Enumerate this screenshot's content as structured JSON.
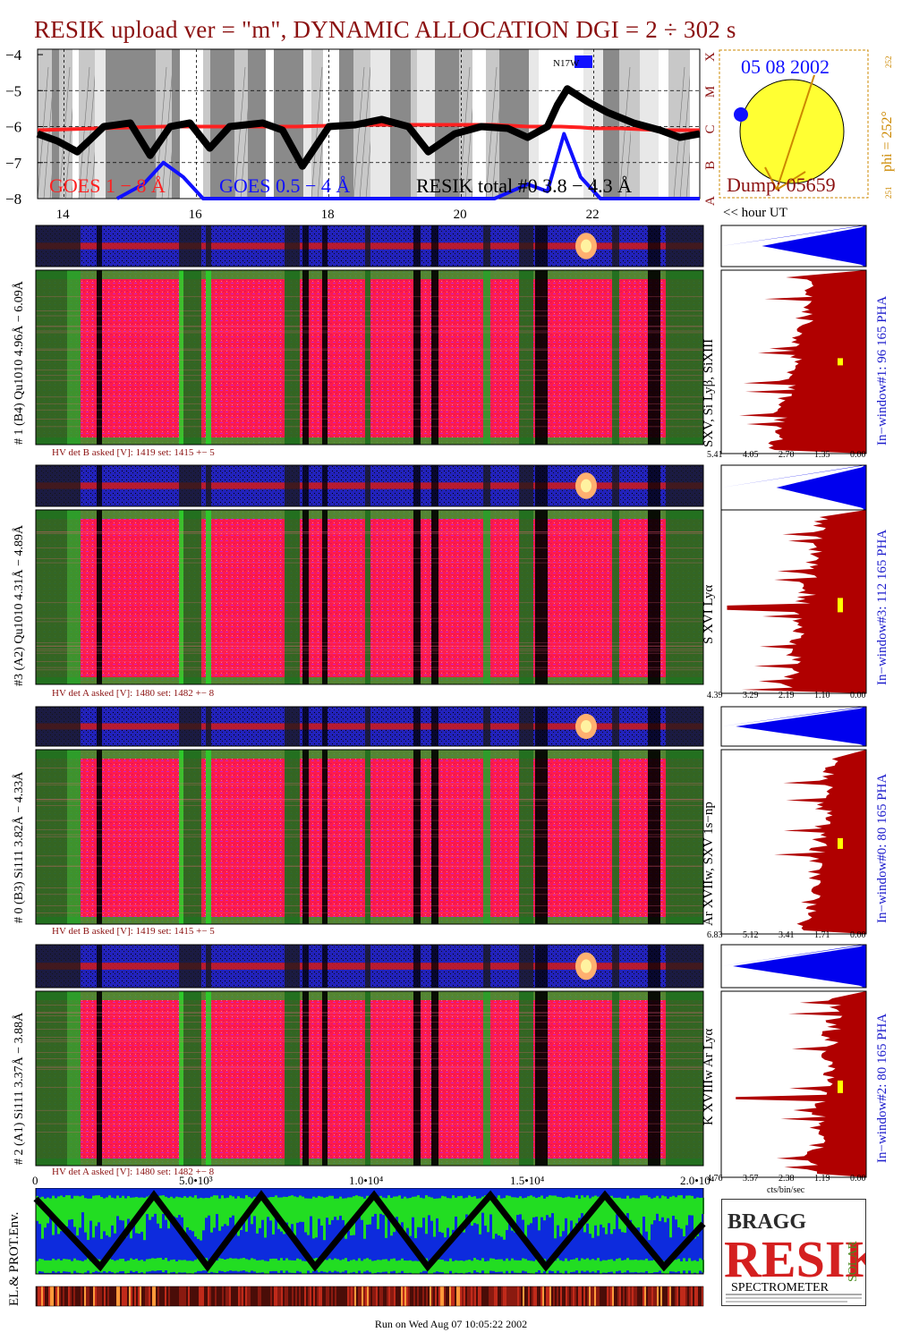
{
  "title": "RESIK upload ver = \"m\", DYNAMIC ALLOCATION  DGI =   2 ÷ 302 s",
  "footer": "Run on Wed Aug 07 10:05:22 2002",
  "hour_label": "<< hour UT",
  "colors": {
    "goes_long": "#ff2020",
    "goes_short": "#1010ff",
    "resik": "#000000",
    "pha": "#0000ee",
    "spectrum": "#b00000",
    "title": "#8b1010",
    "label_blue": "#1a1acc",
    "label_orange": "#cc8800"
  },
  "goes_panel": {
    "yticks": [
      "−4",
      "−5",
      "−6",
      "−7",
      "−8"
    ],
    "classes": [
      "X",
      "M",
      "C",
      "B",
      "A"
    ],
    "legend_long": "GOES 1 − 8 Å",
    "legend_short": "GOES 0.5 − 4 Å",
    "legend_resik": "RESIK total #0  3.8 − 4.3 Å",
    "marker": "N17W"
  },
  "sun": {
    "date": "05 08 2002",
    "phi": "phi = 252°",
    "phi_top": "252",
    "phi_bottom": "251",
    "dump": "Dump: 05659"
  },
  "chart_data": {
    "type": "line",
    "title": "RESIK upload ver = \"m\", DYNAMIC ALLOCATION  DGI =   2 ÷ 302 s",
    "xlabel": "<< hour UT",
    "ylabel": "",
    "x_ticks": [
      "14",
      "16",
      "18",
      "20",
      "22"
    ],
    "xlim": [
      13.6,
      23.6
    ],
    "ylim": [
      -8,
      -3.85
    ],
    "series": [
      {
        "name": "GOES 1 − 8 Å",
        "x": [
          13.6,
          14.5,
          15.5,
          16.5,
          17.5,
          18.5,
          19.5,
          20.5,
          21.0,
          21.5,
          21.8,
          22.0,
          22.4,
          23.0,
          23.6
        ],
        "values": [
          -6.1,
          -6.05,
          -6.0,
          -6.0,
          -6.0,
          -5.95,
          -5.95,
          -5.95,
          -6.0,
          -6.0,
          -6.02,
          -6.05,
          -6.05,
          -6.1,
          -6.1
        ]
      },
      {
        "name": "GOES 0.5 − 4 Å",
        "x": [
          14.8,
          15.2,
          15.5,
          15.8,
          16.1,
          16.5,
          17.0,
          19.5,
          20.5,
          21.0,
          21.3,
          21.55,
          21.8,
          22.1,
          22.6,
          23.0,
          23.6
        ],
        "values": [
          -8,
          -7.6,
          -7.0,
          -7.4,
          -8,
          -8,
          -8,
          -8,
          -8,
          -7.6,
          -7.8,
          -6.2,
          -7.4,
          -8,
          -8,
          -8,
          -8
        ]
      },
      {
        "name": "RESIK total #0  3.8 − 4.3 Å",
        "x": [
          13.6,
          13.9,
          14.2,
          14.6,
          15.0,
          15.3,
          15.6,
          15.9,
          16.2,
          16.5,
          17.0,
          17.3,
          17.6,
          18.0,
          18.4,
          18.8,
          19.2,
          19.5,
          19.9,
          20.3,
          20.7,
          21.0,
          21.3,
          21.45,
          21.6,
          21.9,
          22.2,
          22.6,
          23.0,
          23.3,
          23.6
        ],
        "values": [
          -6.2,
          -6.4,
          -6.7,
          -6.0,
          -5.9,
          -6.8,
          -6.0,
          -5.9,
          -6.6,
          -6.0,
          -5.9,
          -6.1,
          -7.1,
          -6.0,
          -5.95,
          -5.8,
          -6.0,
          -6.7,
          -6.2,
          -6.0,
          -6.05,
          -6.3,
          -6.0,
          -5.4,
          -4.95,
          -5.3,
          -5.6,
          -5.9,
          -6.1,
          -6.3,
          -6.2
        ]
      }
    ],
    "grid": true,
    "legend": "bottom"
  },
  "detectors": [
    {
      "id": "d1",
      "label": "# 1 (B4) Qu1010 4.96Å − 6.09Å",
      "hv": "HV det B asked [V]:  1419 set:  1415 +−    5",
      "line_label": "SXV, Si Lyβ, SiXIII",
      "window": "In−window#1:   96 165  PHA",
      "ticks": [
        "5.41",
        "4.05",
        "2.70",
        "1.35",
        "0.00"
      ]
    },
    {
      "id": "d3",
      "label": "#3 (A2) Qu1010  4.31Å − 4.89Å",
      "hv": "HV det A asked [V]:  1480 set:  1482 +−    8",
      "line_label": "S XVI Lyα",
      "window": "In−window#3:   112 165  PHA",
      "ticks": [
        "4.39",
        "3.29",
        "2.19",
        "1.10",
        "0.00"
      ]
    },
    {
      "id": "d0",
      "label": "# 0 (B3) Si111  3.82Å − 4.33Å",
      "hv": "HV det B asked [V]:  1419 set:  1415 +−    5",
      "line_label": "Ar XVIIw,  SXV 1s−np",
      "window": "In−window#0:   80 165  PHA",
      "ticks": [
        "6.83",
        "5.12",
        "3.41",
        "1.71",
        "0.00"
      ]
    },
    {
      "id": "d2",
      "label": "# 2 (A1) Si111  3.37Å − 3.88Å",
      "hv": "HV det A asked [V]:  1480 set:  1482 +−    8",
      "line_label": "K XVIIIw  Ar Lyα",
      "window": "In−window#2:   80 165  PHA",
      "ticks": [
        "4.76",
        "3.57",
        "2.38",
        "1.19",
        "0.00"
      ],
      "unit": "cts/bin/sec"
    }
  ],
  "env_panel": {
    "label": "EL.& PROT.Env.",
    "x_ticks": [
      "0",
      "5.0•10³",
      "1.0•10⁴",
      "1.5•10⁴",
      "2.0•10⁴"
    ]
  },
  "logo": {
    "bragg": "BRAGG",
    "resik": "RESIK",
    "solar": "SOLAR",
    "spectrometer": "SPECTROMETER"
  }
}
